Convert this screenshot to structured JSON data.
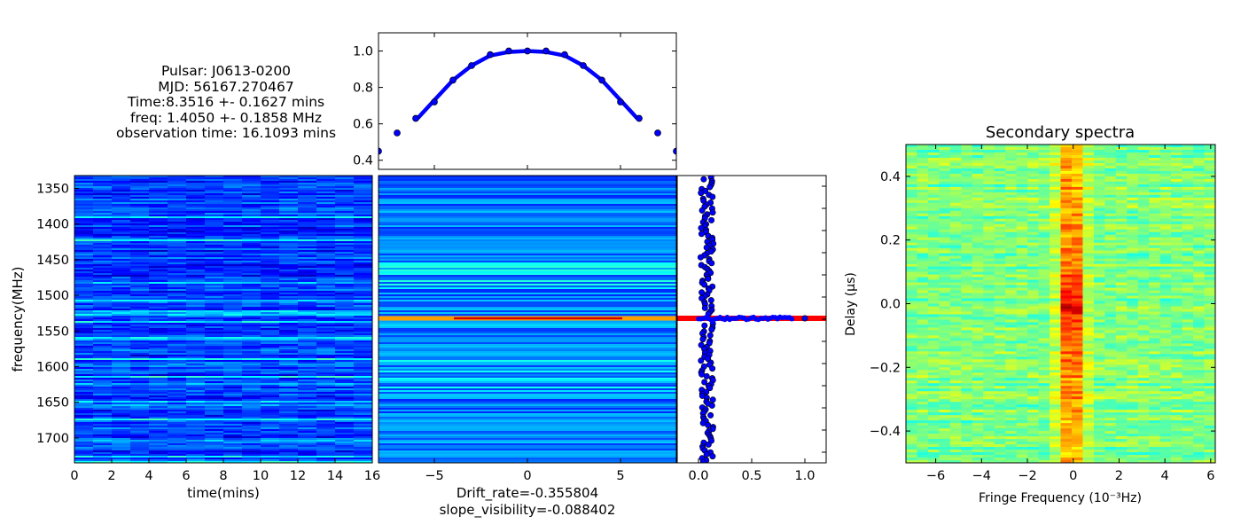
{
  "info": {
    "pulsar": "Pulsar: J0613-0200",
    "mjd": "MJD: 56167.270467",
    "time": "Time:8.3516 +- 0.1627 mins",
    "freq": "freq: 1.4050 +- 0.1858 MHz",
    "obs": "observation time: 16.1093 mins"
  },
  "colors": {
    "jet_low": "#00007f",
    "jet_high": "#7f0000",
    "fit_line_blue": "#0000ff",
    "fit_line_red": "#ff0000",
    "marker": "#0000ff"
  },
  "chart_data": [
    {
      "id": "dynamic-spectrum",
      "type": "heatmap",
      "title": "",
      "xlabel": "time(mins)",
      "ylabel": "frequency(MHz)",
      "xlim": [
        0,
        16
      ],
      "ylim": [
        1735,
        1332
      ],
      "xticks": [
        "0",
        "2",
        "4",
        "6",
        "8",
        "10",
        "12",
        "14",
        "16"
      ],
      "yticks": [
        "1350",
        "1400",
        "1450",
        "1500",
        "1550",
        "1600",
        "1650",
        "1700"
      ],
      "colormap": "jet",
      "notes": "mostly dark-blue with horizontal cyan streaks"
    },
    {
      "id": "autocorrelation-2d",
      "type": "heatmap",
      "title": "",
      "xlabel_lines": [
        "Drift_rate=-0.355804",
        "slope_visibility=-0.088402"
      ],
      "xlim": [
        -8,
        8
      ],
      "xticks": [
        "-5",
        "0",
        "5"
      ],
      "colormap": "jet",
      "notes": "horizontal red/yellow line at lag zero"
    },
    {
      "id": "time-autocorrelation",
      "type": "scatter",
      "title": "",
      "xlim": [
        -8,
        8
      ],
      "ylim": [
        0.35,
        1.1
      ],
      "yticks": [
        "0.4",
        "0.6",
        "0.8",
        "1.0"
      ],
      "points": {
        "x": [
          -8,
          -7,
          -6,
          -5,
          -4,
          -3,
          -2,
          -1,
          0,
          1,
          2,
          3,
          4,
          5,
          6,
          7,
          8
        ],
        "y": [
          0.45,
          0.55,
          0.63,
          0.72,
          0.84,
          0.92,
          0.98,
          1.0,
          1.0,
          1.0,
          0.98,
          0.92,
          0.84,
          0.72,
          0.63,
          0.55,
          0.45
        ]
      },
      "fit": {
        "x": [
          -5.9,
          -5,
          -4,
          -3,
          -2,
          -1,
          0,
          1,
          2,
          3,
          4,
          5,
          5.9
        ],
        "y": [
          0.63,
          0.73,
          0.84,
          0.92,
          0.975,
          0.995,
          1.0,
          0.995,
          0.975,
          0.92,
          0.84,
          0.73,
          0.63
        ]
      }
    },
    {
      "id": "frequency-autocorrelation",
      "type": "scatter",
      "title": "",
      "xlim": [
        -0.2,
        1.2
      ],
      "xticks": [
        "0.0",
        "0.5",
        "1.0"
      ],
      "lag_zero_value": 1.0,
      "scatter_spread": 0.12
    },
    {
      "id": "secondary-spectra",
      "type": "heatmap",
      "title": "Secondary spectra",
      "xlabel": "Fringe Frequency (10⁻³Hz)",
      "ylabel": "Delay (μs)",
      "xlim": [
        -7.3,
        6.2
      ],
      "ylim": [
        -0.5,
        0.5
      ],
      "xticks": [
        "-6",
        "-4",
        "-2",
        "0",
        "2",
        "4",
        "6"
      ],
      "yticks": [
        "0.4",
        "0.2",
        "0.0",
        "-0.2",
        "-0.4"
      ],
      "colormap": "jet",
      "notes": "green background, red/yellow column at fringe frequency 0"
    }
  ]
}
